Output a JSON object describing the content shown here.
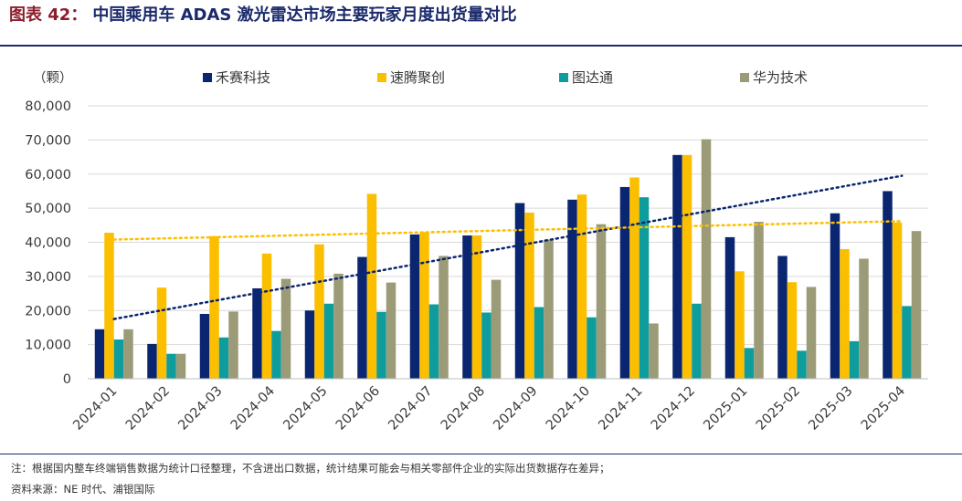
{
  "header": {
    "figure_label": "图表 42：",
    "title": "中国乘用车 ADAS 激光雷达市场主要玩家月度出货量对比"
  },
  "footer": {
    "note": "注：根据国内整车终端销售数据为统计口径整理，不含进出口数据，统计结果可能会与相关零部件企业的实际出货数据存在差异；",
    "source": "资料来源：NE 时代、浦银国际"
  },
  "chart_data": {
    "type": "bar",
    "unit_label": "（颗）",
    "categories": [
      "2024-01",
      "2024-02",
      "2024-03",
      "2024-04",
      "2024-05",
      "2024-06",
      "2024-07",
      "2024-08",
      "2024-09",
      "2024-10",
      "2024-11",
      "2024-12",
      "2025-01",
      "2025-02",
      "2025-03",
      "2025-04"
    ],
    "ylim": [
      0,
      80000
    ],
    "yticks": [
      0,
      10000,
      20000,
      30000,
      40000,
      50000,
      60000,
      70000,
      80000
    ],
    "ytick_labels": [
      "0",
      "10,000",
      "20,000",
      "30,000",
      "40,000",
      "50,000",
      "60,000",
      "70,000",
      "80,000"
    ],
    "grid": true,
    "legend_position": "top",
    "series": [
      {
        "name": "禾赛科技",
        "color": "#0b2670",
        "values": [
          14500,
          10200,
          19000,
          26500,
          20000,
          35700,
          42300,
          42000,
          51500,
          52500,
          56200,
          65600,
          41500,
          36000,
          48500,
          55000
        ]
      },
      {
        "name": "速腾聚创",
        "color": "#fcbf00",
        "values": [
          42800,
          26700,
          41800,
          36700,
          39400,
          54200,
          43000,
          42000,
          48700,
          54000,
          59000,
          65600,
          31500,
          28300,
          38000,
          45800
        ]
      },
      {
        "name": "图达通",
        "color": "#0e9c9c",
        "values": [
          11500,
          7300,
          12100,
          14000,
          22000,
          19600,
          21800,
          19400,
          21000,
          18000,
          53200,
          22000,
          9000,
          8200,
          11000,
          21300
        ]
      },
      {
        "name": "华为技术",
        "color": "#9c9b78",
        "values": [
          14500,
          7300,
          19700,
          29300,
          30800,
          28200,
          36000,
          29000,
          40800,
          45300,
          16200,
          70200,
          46000,
          26900,
          35200,
          43300
        ]
      }
    ],
    "trendlines": [
      {
        "series": "禾赛科技",
        "color": "#0b2670",
        "style": "dotted",
        "start": 17500,
        "end": 59500
      },
      {
        "series": "速腾聚创",
        "color": "#fcbf00",
        "style": "dotted",
        "start": 40800,
        "end": 46200
      }
    ]
  }
}
